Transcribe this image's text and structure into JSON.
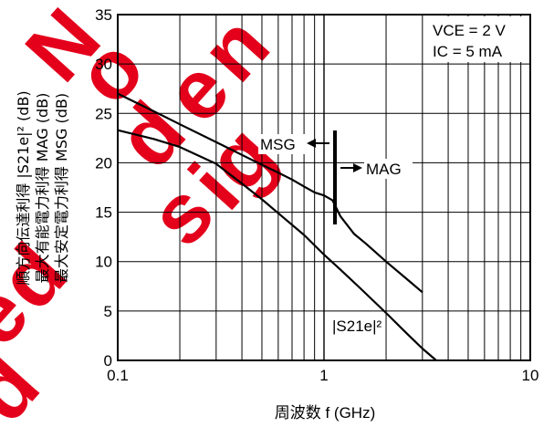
{
  "chart_data": {
    "type": "line",
    "x_scale": "log",
    "xlim": [
      0.1,
      10
    ],
    "ylim": [
      0,
      35
    ],
    "grid": true,
    "x_ticks": [
      "0.1",
      "1",
      "10"
    ],
    "y_ticks": [
      "0",
      "5",
      "10",
      "15",
      "20",
      "25",
      "30",
      "35"
    ],
    "xlabel": "周波数  f (GHz)",
    "ylabel_lines": [
      "順方向伝達利得  |S21e|² (dB)",
      "最大有能電力利得  MAG (dB)",
      "最大安定電力利得  MSG (dB)"
    ],
    "conditions": {
      "vce": "VCE = 2 V",
      "ic": "IC = 5 mA"
    },
    "annotations": {
      "msg": "MSG",
      "mag": "MAG",
      "s21": "|S21e|²"
    },
    "watermark": "Not Recommended for new design",
    "watermark_color": "#e4001b",
    "series": [
      {
        "name": "MSG / MAG",
        "x": [
          0.1,
          0.15,
          0.2,
          0.3,
          0.4,
          0.5,
          0.6,
          0.7,
          0.8,
          0.9,
          1.0,
          1.1,
          1.2,
          1.4,
          1.6,
          2.0,
          2.5,
          3.0
        ],
        "y": [
          27.0,
          25.2,
          23.9,
          22.1,
          20.8,
          19.8,
          19.0,
          18.3,
          17.6,
          17.0,
          16.7,
          16.2,
          14.6,
          12.8,
          11.8,
          10.0,
          8.3,
          6.9
        ]
      },
      {
        "name": "|S21e|²",
        "x": [
          0.1,
          0.15,
          0.2,
          0.3,
          0.4,
          0.5,
          0.6,
          0.8,
          1.0,
          1.2,
          1.5,
          2.0,
          2.5,
          3.0,
          3.5
        ],
        "y": [
          23.3,
          22.4,
          21.6,
          19.9,
          17.9,
          16.3,
          14.9,
          12.7,
          10.7,
          9.2,
          7.3,
          4.8,
          2.8,
          1.2,
          0.0
        ]
      }
    ]
  }
}
